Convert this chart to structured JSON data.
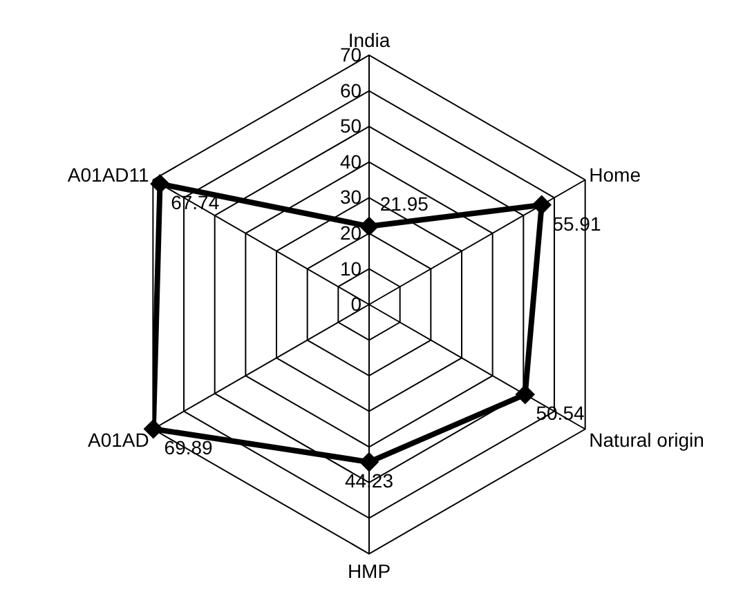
{
  "chart_data": {
    "type": "radar",
    "categories": [
      "India",
      "Home",
      "Natural origin",
      "HMP",
      "A01AD",
      "A01AD11"
    ],
    "series": [
      {
        "color": "#000000",
        "values": [
          21.95,
          55.91,
          50.54,
          44.23,
          69.89,
          67.74
        ]
      }
    ],
    "ylim": [
      0,
      70
    ],
    "yticks": [
      0,
      10,
      20,
      30,
      40,
      50,
      60,
      70
    ],
    "data_labels": true,
    "marker": "diamond",
    "line_style": "solid",
    "grid": true
  }
}
